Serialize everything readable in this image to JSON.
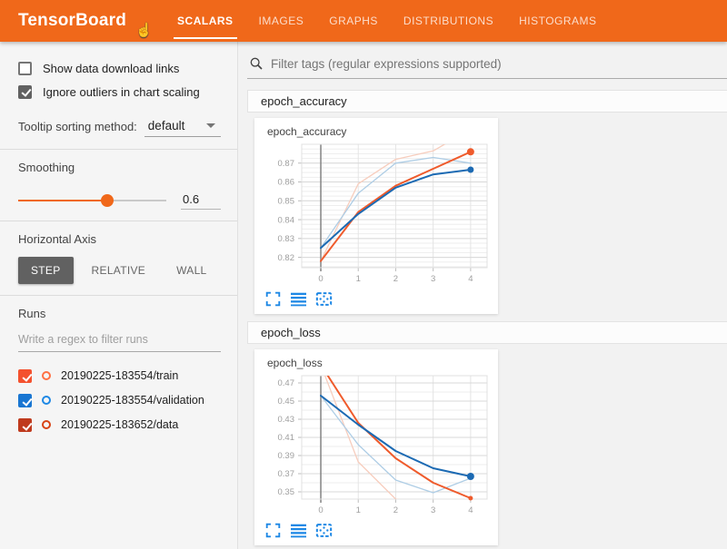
{
  "header": {
    "title": "TensorBoard",
    "accent_color": "#f0681a",
    "active_tab": "SCALARS",
    "tabs": [
      {
        "label": "SCALARS"
      },
      {
        "label": "IMAGES"
      },
      {
        "label": "GRAPHS"
      },
      {
        "label": "DISTRIBUTIONS"
      },
      {
        "label": "HISTOGRAMS"
      }
    ]
  },
  "sidebar": {
    "show_download": {
      "label": "Show data download links",
      "checked": false
    },
    "ignore_outliers": {
      "label": "Ignore outliers in chart scaling",
      "checked": true
    },
    "tooltip_sort": {
      "label": "Tooltip sorting method:",
      "value": "default"
    },
    "smoothing": {
      "label": "Smoothing",
      "value": "0.6"
    },
    "horizontal_axis": {
      "label": "Horizontal Axis",
      "options": [
        "STEP",
        "RELATIVE",
        "WALL"
      ],
      "selected": "STEP"
    },
    "runs": {
      "label": "Runs",
      "filter_placeholder": "Write a regex to filter runs",
      "items": [
        {
          "name": "20190225-183554/train",
          "checked": true,
          "checkbox_color": "#f4512e",
          "circle_color": "#ff7043"
        },
        {
          "name": "20190225-183554/validation",
          "checked": true,
          "checkbox_color": "#1976d2",
          "circle_color": "#1e88e5"
        },
        {
          "name": "20190225-183652/data",
          "checked": true,
          "checkbox_color": "#bf3a1d",
          "circle_color": "#d84315"
        }
      ]
    }
  },
  "main": {
    "filter_placeholder": "Filter tags (regular expressions supported)",
    "sections": [
      {
        "title": "epoch_accuracy"
      },
      {
        "title": "epoch_loss"
      }
    ]
  },
  "icon_color": "#1e88e5",
  "chart_data": [
    {
      "type": "line",
      "title": "epoch_accuracy",
      "xlabel": "",
      "ylabel": "",
      "grid": true,
      "legend": "none",
      "x": [
        0,
        1,
        2,
        3,
        4
      ],
      "xlim": [
        -0.51,
        4.44
      ],
      "ylim": [
        0.8145,
        0.88
      ],
      "xticks": [
        0,
        1,
        2,
        3,
        4
      ],
      "xtick_labels": [
        "0",
        "1",
        "2",
        "3",
        "4"
      ],
      "yticks": [
        0.82,
        0.83,
        0.84,
        0.85,
        0.86,
        0.87
      ],
      "ytick_labels": [
        "0.82",
        "0.83",
        "0.84",
        "0.85",
        "0.86",
        "0.87"
      ],
      "ytick_minor_step": 0.0025,
      "series": [
        {
          "name": "train",
          "role": "raw",
          "color": "#f7cdbd",
          "width": 1.3,
          "values": [
            0.818,
            0.859,
            0.872,
            0.8765,
            0.888
          ]
        },
        {
          "name": "validation",
          "role": "raw",
          "color": "#aecde5",
          "width": 1.3,
          "values": [
            0.825,
            0.854,
            0.87,
            0.873,
            0.87
          ]
        },
        {
          "name": "train_smoothed",
          "role": "smoothed",
          "color": "#ef5b2c",
          "width": 2,
          "end_dot": 4,
          "values": [
            0.818,
            0.844,
            0.858,
            0.867,
            0.876
          ]
        },
        {
          "name": "validation_smoothed",
          "role": "smoothed",
          "color": "#1c6ab3",
          "width": 2,
          "end_dot": 3.5,
          "values": [
            0.825,
            0.843,
            0.857,
            0.864,
            0.8665
          ]
        }
      ]
    },
    {
      "type": "line",
      "title": "epoch_loss",
      "xlabel": "",
      "ylabel": "",
      "grid": true,
      "legend": "none",
      "x": [
        0,
        1,
        2,
        3,
        4
      ],
      "xlim": [
        -0.51,
        4.44
      ],
      "ylim": [
        0.342,
        0.478
      ],
      "xticks": [
        0,
        1,
        2,
        3,
        4
      ],
      "xtick_labels": [
        "0",
        "1",
        "2",
        "3",
        "4"
      ],
      "yticks": [
        0.35,
        0.37,
        0.39,
        0.41,
        0.43,
        0.45,
        0.47
      ],
      "ytick_labels": [
        "0.35",
        "0.37",
        "0.39",
        "0.41",
        "0.43",
        "0.45",
        "0.47"
      ],
      "ytick_minor_step": 0.01,
      "series": [
        {
          "name": "train",
          "role": "raw",
          "color": "#f7cdbd",
          "width": 1.3,
          "values": [
            0.49,
            0.383,
            0.342,
            0.333,
            0.321
          ]
        },
        {
          "name": "validation",
          "role": "raw",
          "color": "#aecde5",
          "width": 1.3,
          "values": [
            0.456,
            0.402,
            0.363,
            0.349,
            0.365
          ]
        },
        {
          "name": "train_smoothed",
          "role": "smoothed",
          "color": "#ef5b2c",
          "width": 2,
          "end_dot": 2.5,
          "values": [
            0.49,
            0.426,
            0.387,
            0.36,
            0.343
          ]
        },
        {
          "name": "validation_smoothed",
          "role": "smoothed",
          "color": "#1c6ab3",
          "width": 2,
          "end_dot": 4,
          "values": [
            0.456,
            0.424,
            0.395,
            0.376,
            0.367
          ]
        }
      ]
    }
  ]
}
